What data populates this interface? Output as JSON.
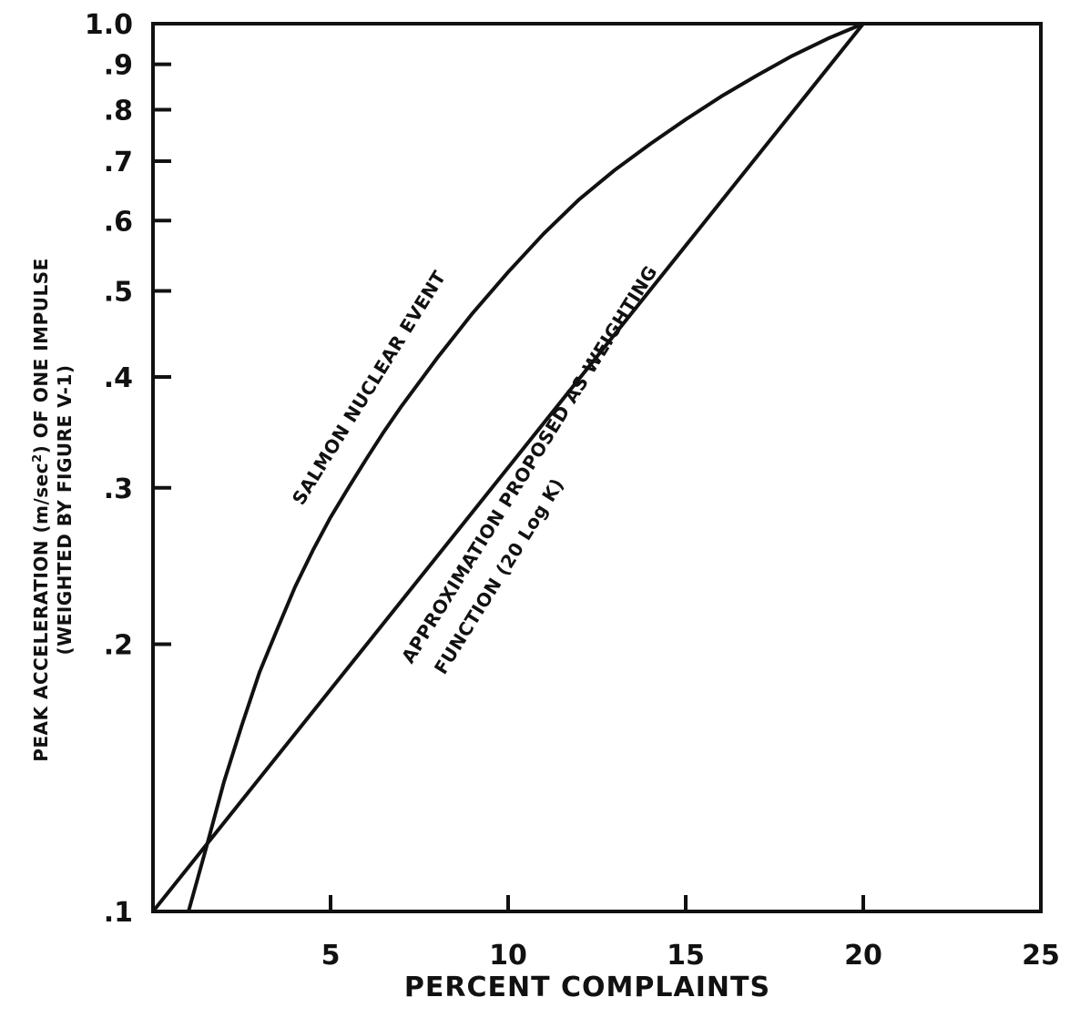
{
  "chart_data": {
    "type": "line",
    "title": "",
    "xlabel": "PERCENT COMPLAINTS",
    "ylabel_line1": "PEAK ACCELERATION (m/sec",
    "ylabel_sup": "2",
    "ylabel_line1_end": ") OF ONE IMPULSE",
    "ylabel_line2": "(WEIGHTED BY FIGURE V-1)",
    "xlim": [
      0,
      25
    ],
    "ylim": [
      0.1,
      1.0
    ],
    "yscale": "log",
    "grid": false,
    "legend": "none",
    "x_ticks": [
      {
        "value": 5,
        "label": "5"
      },
      {
        "value": 10,
        "label": "10"
      },
      {
        "value": 15,
        "label": "15"
      },
      {
        "value": 20,
        "label": "20"
      },
      {
        "value": 25,
        "label": "25"
      }
    ],
    "y_ticks": [
      {
        "value": 0.1,
        "label": ".1"
      },
      {
        "value": 0.2,
        "label": ".2"
      },
      {
        "value": 0.3,
        "label": ".3"
      },
      {
        "value": 0.4,
        "label": ".4"
      },
      {
        "value": 0.5,
        "label": ".5"
      },
      {
        "value": 0.6,
        "label": ".6"
      },
      {
        "value": 0.7,
        "label": ".7"
      },
      {
        "value": 0.8,
        "label": ".8"
      },
      {
        "value": 0.9,
        "label": ".9"
      },
      {
        "value": 1.0,
        "label": "1.0"
      }
    ],
    "series": [
      {
        "label": "SALMON NUCLEAR EVENT",
        "x": [
          1.0,
          1.5,
          2.0,
          2.5,
          3.0,
          3.5,
          4.0,
          4.5,
          5.0,
          5.5,
          6.0,
          6.5,
          7.0,
          8.0,
          9.0,
          10.0,
          11.0,
          12.0,
          13.0,
          14.0,
          15.0,
          16.0,
          17.0,
          18.0,
          19.0,
          20.0
        ],
        "y": [
          0.1,
          0.118,
          0.14,
          0.162,
          0.186,
          0.208,
          0.232,
          0.255,
          0.278,
          0.3,
          0.323,
          0.347,
          0.371,
          0.42,
          0.472,
          0.525,
          0.58,
          0.634,
          0.684,
          0.732,
          0.78,
          0.828,
          0.874,
          0.92,
          0.962,
          1.0
        ]
      },
      {
        "label_line1": "APPROXIMATION PROPOSED AS WEIGHTING",
        "label_line2": "FUNCTION (20 Log K)",
        "x": [
          0,
          20
        ],
        "y": [
          0.1,
          1.0
        ]
      }
    ]
  }
}
